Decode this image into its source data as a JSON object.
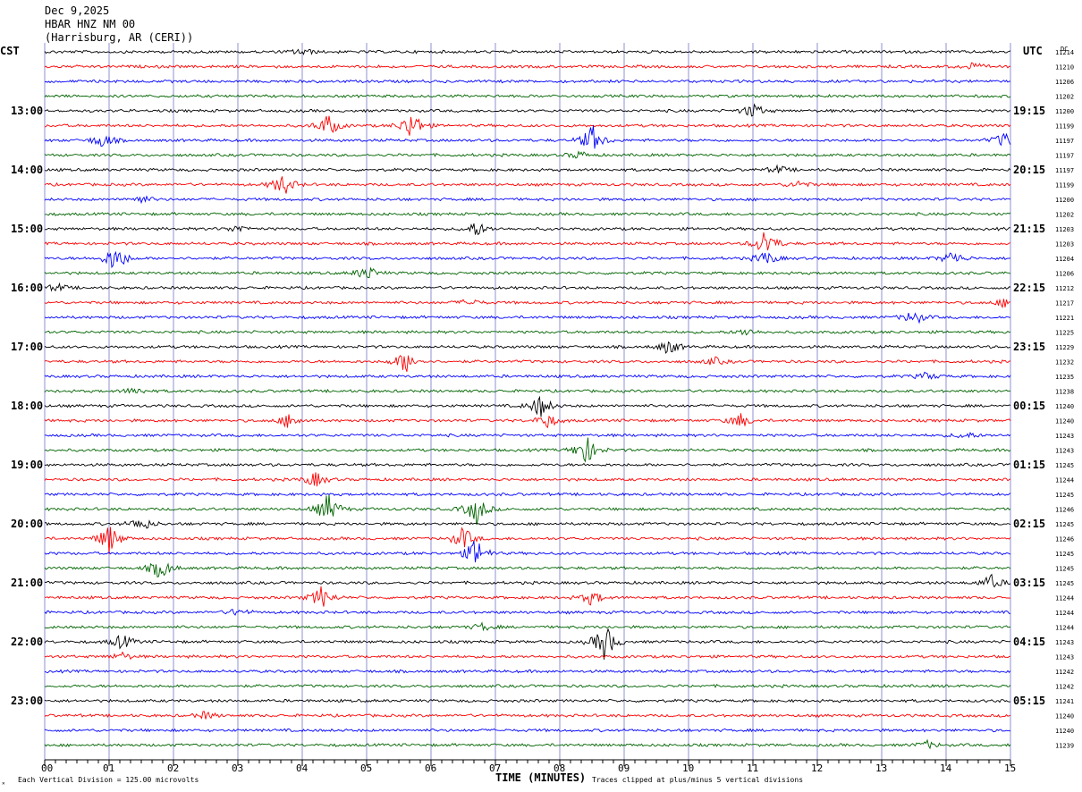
{
  "header": {
    "date": "Dec 9,2025",
    "station": "HBAR HNZ NM 00",
    "location": "(Harrisburg, AR (CERI))"
  },
  "labels": {
    "left_tz": "CST",
    "right_tz": "UTC",
    "dc_label": "DC",
    "xlabel": "TIME (MINUTES)",
    "scale_note": "Each Vertical Division =  125.00 microvolts",
    "clip_note": "Traces clipped at plus/minus 5 vertical divisions",
    "corner_mark": "✕"
  },
  "colors": {
    "cycle": [
      "#000000",
      "#ff0000",
      "#0000ff",
      "#006400"
    ],
    "grid": "#6060c0"
  },
  "chart_data": {
    "type": "line",
    "title": "HBAR HNZ NM 00 helicorder, Dec 9,2025",
    "xlabel": "TIME (MINUTES)",
    "x_ticks": [
      "00",
      "01",
      "02",
      "03",
      "04",
      "05",
      "06",
      "07",
      "08",
      "09",
      "10",
      "11",
      "12",
      "13",
      "14",
      "15"
    ],
    "xlim": [
      0,
      15
    ],
    "rows_per_hour": 4,
    "minutes_per_row": 15,
    "left_hour_labels": [
      "13:00",
      "14:00",
      "15:00",
      "16:00",
      "17:00",
      "18:00",
      "19:00",
      "20:00",
      "21:00",
      "22:00",
      "23:00"
    ],
    "right_hour_labels": [
      "19:15",
      "20:15",
      "21:15",
      "22:15",
      "23:15",
      "00:15",
      "01:15",
      "02:15",
      "03:15",
      "04:15",
      "05:15"
    ],
    "dc_offsets": [
      "11214",
      "11210",
      "11206",
      "11202",
      "11200",
      "11199",
      "11197",
      "11197",
      "11197",
      "11199",
      "11200",
      "11202",
      "11203",
      "11203",
      "11204",
      "11206",
      "11212",
      "11217",
      "11221",
      "11225",
      "11229",
      "11232",
      "11235",
      "11238",
      "11240",
      "11240",
      "11243",
      "11243",
      "11245",
      "11244",
      "11245",
      "11246",
      "11245",
      "11246",
      "11245",
      "11245",
      "11245",
      "11244",
      "11244",
      "11244",
      "11243",
      "11243",
      "11242",
      "11242",
      "11241",
      "11240",
      "11240",
      "11239"
    ],
    "events": [
      {
        "row": 0,
        "minute": 4.0,
        "amp": 1
      },
      {
        "row": 1,
        "minute": 14.4,
        "amp": 1
      },
      {
        "row": 4,
        "minute": 11.0,
        "amp": 2
      },
      {
        "row": 5,
        "minute": 4.4,
        "amp": 3
      },
      {
        "row": 5,
        "minute": 5.7,
        "amp": 4
      },
      {
        "row": 6,
        "minute": 0.9,
        "amp": 2
      },
      {
        "row": 6,
        "minute": 8.5,
        "amp": 4
      },
      {
        "row": 6,
        "minute": 14.9,
        "amp": 2
      },
      {
        "row": 7,
        "minute": 8.3,
        "amp": 1
      },
      {
        "row": 8,
        "minute": 11.4,
        "amp": 1
      },
      {
        "row": 9,
        "minute": 3.7,
        "amp": 3
      },
      {
        "row": 9,
        "minute": 11.7,
        "amp": 1
      },
      {
        "row": 10,
        "minute": 1.5,
        "amp": 1
      },
      {
        "row": 12,
        "minute": 3.0,
        "amp": 1
      },
      {
        "row": 12,
        "minute": 6.7,
        "amp": 2
      },
      {
        "row": 13,
        "minute": 11.2,
        "amp": 4
      },
      {
        "row": 14,
        "minute": 1.1,
        "amp": 4
      },
      {
        "row": 14,
        "minute": 11.2,
        "amp": 2
      },
      {
        "row": 14,
        "minute": 14.1,
        "amp": 2
      },
      {
        "row": 15,
        "minute": 5.0,
        "amp": 2
      },
      {
        "row": 16,
        "minute": 0.2,
        "amp": 1
      },
      {
        "row": 17,
        "minute": 6.6,
        "amp": 1
      },
      {
        "row": 17,
        "minute": 14.9,
        "amp": 1
      },
      {
        "row": 18,
        "minute": 13.5,
        "amp": 2
      },
      {
        "row": 19,
        "minute": 10.9,
        "amp": 1
      },
      {
        "row": 20,
        "minute": 9.7,
        "amp": 2
      },
      {
        "row": 21,
        "minute": 5.6,
        "amp": 3
      },
      {
        "row": 21,
        "minute": 10.4,
        "amp": 1
      },
      {
        "row": 22,
        "minute": 13.7,
        "amp": 1
      },
      {
        "row": 23,
        "minute": 1.4,
        "amp": 1
      },
      {
        "row": 24,
        "minute": 7.7,
        "amp": 3
      },
      {
        "row": 25,
        "minute": 3.8,
        "amp": 2
      },
      {
        "row": 25,
        "minute": 7.8,
        "amp": 2
      },
      {
        "row": 25,
        "minute": 10.8,
        "amp": 2
      },
      {
        "row": 26,
        "minute": 14.3,
        "amp": 1
      },
      {
        "row": 27,
        "minute": 8.4,
        "amp": 4
      },
      {
        "row": 29,
        "minute": 4.2,
        "amp": 2
      },
      {
        "row": 31,
        "minute": 4.4,
        "amp": 4
      },
      {
        "row": 31,
        "minute": 6.7,
        "amp": 4
      },
      {
        "row": 32,
        "minute": 1.5,
        "amp": 2
      },
      {
        "row": 33,
        "minute": 1.0,
        "amp": 4
      },
      {
        "row": 33,
        "minute": 6.5,
        "amp": 3
      },
      {
        "row": 34,
        "minute": 6.7,
        "amp": 4
      },
      {
        "row": 35,
        "minute": 1.8,
        "amp": 3
      },
      {
        "row": 36,
        "minute": 14.7,
        "amp": 2
      },
      {
        "row": 37,
        "minute": 4.3,
        "amp": 3
      },
      {
        "row": 37,
        "minute": 8.5,
        "amp": 2
      },
      {
        "row": 38,
        "minute": 3.0,
        "amp": 1
      },
      {
        "row": 39,
        "minute": 6.8,
        "amp": 1
      },
      {
        "row": 40,
        "minute": 8.7,
        "amp": 5
      },
      {
        "row": 40,
        "minute": 1.2,
        "amp": 2
      },
      {
        "row": 41,
        "minute": 1.2,
        "amp": 1
      },
      {
        "row": 45,
        "minute": 2.5,
        "amp": 1
      },
      {
        "row": 47,
        "minute": 13.7,
        "amp": 1
      }
    ]
  }
}
